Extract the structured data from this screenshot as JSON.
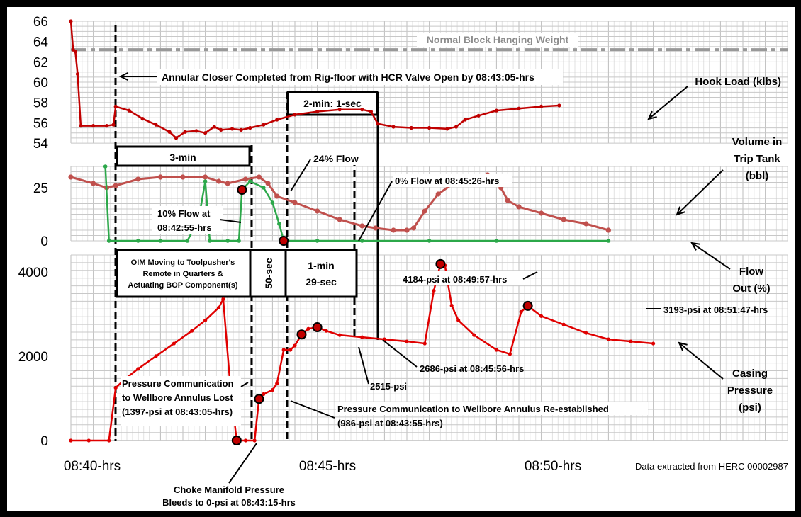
{
  "chart_data": [
    {
      "type": "line",
      "name": "hook-load",
      "ylim": [
        54,
        66
      ],
      "yticks": [
        "66",
        "64",
        "62",
        "60",
        "58",
        "56",
        "54"
      ],
      "series": [
        {
          "name": "Hook Load (klbs)",
          "color": "#c00000",
          "points": [
            [
              0,
              66
            ],
            [
              0.05,
              63.2
            ],
            [
              0.1,
              63
            ],
            [
              0.15,
              60.8
            ],
            [
              0.22,
              55.7
            ],
            [
              0.5,
              55.7
            ],
            [
              0.8,
              55.7
            ],
            [
              0.95,
              55.8
            ],
            [
              1.0,
              57.6
            ],
            [
              1.3,
              57.2
            ],
            [
              1.6,
              56.4
            ],
            [
              1.9,
              55.8
            ],
            [
              2.2,
              55.1
            ],
            [
              2.35,
              54.5
            ],
            [
              2.55,
              55.1
            ],
            [
              2.8,
              55.2
            ],
            [
              3.0,
              55.0
            ],
            [
              3.2,
              55.6
            ],
            [
              3.35,
              55.3
            ],
            [
              3.6,
              55.4
            ],
            [
              3.8,
              55.3
            ],
            [
              4.0,
              55.5
            ],
            [
              4.3,
              55.8
            ],
            [
              4.6,
              56.3
            ],
            [
              5.0,
              56.8
            ],
            [
              5.5,
              57.1
            ],
            [
              6.0,
              57.3
            ],
            [
              6.5,
              57.3
            ],
            [
              6.7,
              57.1
            ],
            [
              6.85,
              55.9
            ],
            [
              7.2,
              55.6
            ],
            [
              7.6,
              55.5
            ],
            [
              8.0,
              55.5
            ],
            [
              8.4,
              55.4
            ],
            [
              8.6,
              55.6
            ],
            [
              8.8,
              56.3
            ],
            [
              9.1,
              56.7
            ],
            [
              9.5,
              57.2
            ],
            [
              10.0,
              57.4
            ],
            [
              10.5,
              57.6
            ],
            [
              10.9,
              57.7
            ]
          ]
        },
        {
          "name": "Normal Block Hanging Weight",
          "color": "#999999",
          "value": 63.2
        }
      ]
    },
    {
      "type": "line",
      "name": "trip-tank-flow",
      "ylim": [
        0,
        35
      ],
      "yticks": [
        "25",
        "0"
      ],
      "series": [
        {
          "name": "Volume in Trip Tank (bbl)",
          "color": "#c0504d",
          "points": [
            [
              0,
              30
            ],
            [
              0.5,
              27
            ],
            [
              0.8,
              25
            ],
            [
              1.0,
              26
            ],
            [
              1.5,
              29
            ],
            [
              2.0,
              30
            ],
            [
              2.5,
              30
            ],
            [
              3.0,
              30
            ],
            [
              3.3,
              28
            ],
            [
              3.5,
              27
            ],
            [
              3.9,
              29
            ],
            [
              4.2,
              30
            ],
            [
              4.4,
              27
            ],
            [
              4.6,
              21
            ],
            [
              5.0,
              18
            ],
            [
              5.5,
              14
            ],
            [
              6.0,
              10
            ],
            [
              6.5,
              7
            ],
            [
              6.8,
              6
            ],
            [
              7.2,
              5
            ],
            [
              7.5,
              5
            ],
            [
              7.65,
              6
            ],
            [
              7.9,
              14
            ],
            [
              8.2,
              22
            ],
            [
              8.6,
              28
            ],
            [
              9.0,
              30
            ],
            [
              9.3,
              31
            ],
            [
              9.5,
              30
            ],
            [
              9.6,
              25
            ],
            [
              9.75,
              19
            ],
            [
              10.0,
              16
            ],
            [
              10.5,
              13
            ],
            [
              11.0,
              10
            ],
            [
              11.5,
              8
            ],
            [
              12.0,
              5
            ]
          ]
        },
        {
          "name": "Flow Out (%)",
          "color": "#2ca84a",
          "points": [
            [
              0.77,
              40
            ],
            [
              0.85,
              0
            ],
            [
              1.5,
              0
            ],
            [
              2.0,
              0
            ],
            [
              2.6,
              0
            ],
            [
              2.85,
              10
            ],
            [
              3.0,
              28
            ],
            [
              3.1,
              0
            ],
            [
              3.5,
              0
            ],
            [
              3.75,
              0
            ],
            [
              3.82,
              24
            ],
            [
              4.0,
              28
            ],
            [
              4.3,
              25
            ],
            [
              4.5,
              18
            ],
            [
              4.65,
              8
            ],
            [
              4.75,
              0
            ],
            [
              5.5,
              0
            ],
            [
              6.5,
              0
            ],
            [
              8.0,
              0
            ],
            [
              9.5,
              0
            ],
            [
              12.0,
              0
            ]
          ]
        }
      ]
    },
    {
      "type": "line",
      "name": "casing-pressure",
      "ylim": [
        0,
        4400
      ],
      "yticks": [
        "4000",
        "2000",
        "0"
      ],
      "series": [
        {
          "name": "Casing Pressure (psi)",
          "color": "#e00000",
          "points": [
            [
              0,
              0
            ],
            [
              0.4,
              0
            ],
            [
              0.85,
              0
            ],
            [
              1.0,
              1250
            ],
            [
              1.2,
              1450
            ],
            [
              1.5,
              1700
            ],
            [
              1.9,
              2000
            ],
            [
              2.3,
              2300
            ],
            [
              2.7,
              2600
            ],
            [
              3.0,
              2850
            ],
            [
              3.3,
              3150
            ],
            [
              3.4,
              3350
            ],
            [
              3.55,
              1397
            ],
            [
              3.7,
              0
            ],
            [
              3.9,
              0
            ],
            [
              4.1,
              0
            ],
            [
              4.2,
              986
            ],
            [
              4.3,
              1100
            ],
            [
              4.5,
              1200
            ],
            [
              4.6,
              1350
            ],
            [
              4.75,
              2150
            ],
            [
              4.9,
              2150
            ],
            [
              5.0,
              2250
            ],
            [
              5.15,
              2515
            ],
            [
              5.3,
              2650
            ],
            [
              5.5,
              2686
            ],
            [
              5.7,
              2600
            ],
            [
              6.0,
              2500
            ],
            [
              6.5,
              2450
            ],
            [
              7.0,
              2400
            ],
            [
              7.5,
              2350
            ],
            [
              7.9,
              2300
            ],
            [
              8.1,
              3550
            ],
            [
              8.25,
              4184
            ],
            [
              8.35,
              4150
            ],
            [
              8.5,
              3200
            ],
            [
              8.65,
              2850
            ],
            [
              9.0,
              2500
            ],
            [
              9.5,
              2150
            ],
            [
              9.8,
              2050
            ],
            [
              10.05,
              3050
            ],
            [
              10.2,
              3193
            ],
            [
              10.5,
              2950
            ],
            [
              11.0,
              2750
            ],
            [
              11.5,
              2550
            ],
            [
              12.0,
              2400
            ],
            [
              12.5,
              2350
            ],
            [
              13.0,
              2300
            ]
          ]
        }
      ]
    },
    {
      "type": "annotations",
      "x_ticks": [
        "08:40-hrs",
        "08:45-hrs",
        "08:50-hrs"
      ],
      "source_note": "Data extracted from HERC 00002987",
      "labels": {
        "hook_load": "Hook Load (klbs)",
        "normal_block": "Normal Block Hanging Weight",
        "annular": "Annular Closer Completed from Rig-floor with HCR Valve Open by 08:43:05-hrs",
        "two_min": "2-min: 1-sec",
        "three_min": "3-min",
        "volume_1": "Volume in",
        "volume_2": "Trip Tank",
        "volume_3": "(bbl)",
        "flow24": "24% Flow",
        "flow0": "0% Flow at 08:45:26-hrs",
        "flow10_1": "10% Flow at",
        "flow10_2": "08:42:55-hrs",
        "flow_out_1": "Flow",
        "flow_out_2": "Out (%)",
        "oim_1": "OIM Moving to Toolpusher's",
        "oim_2": "Remote in Quarters &",
        "oim_3": "Actuating BOP Component(s)",
        "fifty_sec": "50-sec",
        "one_min_1": "1-min",
        "one_min_2": "29-sec",
        "p4184": "4184-psi at 08:49:57-hrs",
        "p3193": "3193-psi at 08:51:47-hrs",
        "p2686": "2686-psi at 08:45:56-hrs",
        "p2515": "2515-psi",
        "casing_1": "Casing",
        "casing_2": "Pressure",
        "casing_3": "(psi)",
        "lost_1": "Pressure Communication",
        "lost_2": "to Wellbore Annulus Lost",
        "lost_3": "(1397-psi at 08:43:05-hrs)",
        "re_1": "Pressure Communication to Wellbore Annulus Re-established",
        "re_2": "(986-psi at 08:43:55-hrs)",
        "choke_1": "Choke Manifold Pressure",
        "choke_2": "Bleeds to 0-psi at 08:43:15-hrs"
      }
    }
  ]
}
